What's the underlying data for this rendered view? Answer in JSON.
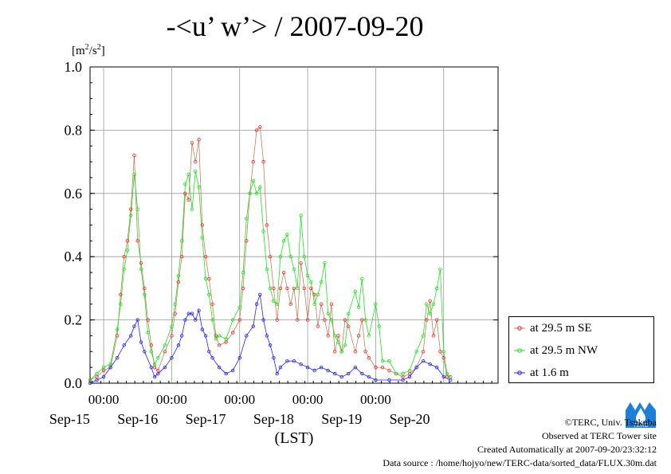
{
  "title": "-<u’ w’> / 2007-09-20",
  "colors": {
    "se": "#ff2020",
    "nw": "#20e020",
    "low": "#2020ff",
    "se_line": "#c08060"
  },
  "chart_data": {
    "type": "line",
    "title": "-<u’ w’> / 2007-09-20",
    "ylabel": "[m²/s²]",
    "xlabel": "(LST)",
    "ylim": [
      0,
      1.0
    ],
    "yticks": [
      "0.0",
      "0.2",
      "0.4",
      "0.6",
      "0.8",
      "1.0"
    ],
    "x_unit": "days since 2007-09-14 00:00 LST",
    "xlim": [
      0.8,
      6.8
    ],
    "x_minor_labels": [
      "00:00",
      "00:00",
      "00:00",
      "00:00",
      "00:00"
    ],
    "x_major_labels": [
      "Sep-15",
      "Sep-16",
      "Sep-17",
      "Sep-18",
      "Sep-19",
      "Sep-20"
    ],
    "grid": true,
    "legend_position": "right",
    "series": [
      {
        "name": "at 29.5 m SE",
        "color": "#ff2020",
        "points": [
          [
            0.8,
            0.01
          ],
          [
            0.9,
            0.02
          ],
          [
            1.0,
            0.04
          ],
          [
            1.1,
            0.05
          ],
          [
            1.2,
            0.15
          ],
          [
            1.25,
            0.28
          ],
          [
            1.3,
            0.4
          ],
          [
            1.35,
            0.45
          ],
          [
            1.4,
            0.55
          ],
          [
            1.45,
            0.72
          ],
          [
            1.5,
            0.45
          ],
          [
            1.55,
            0.38
          ],
          [
            1.6,
            0.3
          ],
          [
            1.65,
            0.2
          ],
          [
            1.7,
            0.12
          ],
          [
            1.75,
            0.05
          ],
          [
            1.8,
            0.04
          ],
          [
            1.9,
            0.1
          ],
          [
            2.0,
            0.15
          ],
          [
            2.05,
            0.22
          ],
          [
            2.1,
            0.32
          ],
          [
            2.15,
            0.4
          ],
          [
            2.2,
            0.6
          ],
          [
            2.25,
            0.58
          ],
          [
            2.3,
            0.76
          ],
          [
            2.35,
            0.7
          ],
          [
            2.4,
            0.77
          ],
          [
            2.45,
            0.5
          ],
          [
            2.5,
            0.4
          ],
          [
            2.55,
            0.33
          ],
          [
            2.6,
            0.25
          ],
          [
            2.65,
            0.15
          ],
          [
            2.7,
            0.12
          ],
          [
            2.8,
            0.13
          ],
          [
            2.9,
            0.16
          ],
          [
            3.0,
            0.2
          ],
          [
            3.05,
            0.3
          ],
          [
            3.1,
            0.45
          ],
          [
            3.15,
            0.6
          ],
          [
            3.2,
            0.7
          ],
          [
            3.25,
            0.8
          ],
          [
            3.3,
            0.81
          ],
          [
            3.35,
            0.7
          ],
          [
            3.4,
            0.5
          ],
          [
            3.45,
            0.4
          ],
          [
            3.5,
            0.3
          ],
          [
            3.55,
            0.2
          ],
          [
            3.6,
            0.3
          ],
          [
            3.65,
            0.35
          ],
          [
            3.7,
            0.3
          ],
          [
            3.75,
            0.25
          ],
          [
            3.8,
            0.3
          ],
          [
            3.85,
            0.2
          ],
          [
            3.9,
            0.38
          ],
          [
            3.95,
            0.3
          ],
          [
            4.0,
            0.2
          ],
          [
            4.05,
            0.3
          ],
          [
            4.1,
            0.28
          ],
          [
            4.15,
            0.18
          ],
          [
            4.2,
            0.25
          ],
          [
            4.25,
            0.2
          ],
          [
            4.3,
            0.15
          ],
          [
            4.35,
            0.25
          ],
          [
            4.4,
            0.1
          ],
          [
            4.45,
            0.15
          ],
          [
            4.5,
            0.1
          ],
          [
            4.55,
            0.2
          ],
          [
            4.6,
            0.18
          ],
          [
            4.7,
            0.1
          ],
          [
            4.75,
            0.15
          ],
          [
            4.8,
            0.2
          ],
          [
            4.85,
            0.1
          ],
          [
            4.9,
            0.08
          ],
          [
            5.0,
            0.05
          ],
          [
            5.1,
            0.05
          ],
          [
            5.2,
            0.04
          ],
          [
            5.3,
            0.03
          ],
          [
            5.4,
            0.02
          ],
          [
            5.5,
            0.03
          ],
          [
            5.6,
            0.05
          ],
          [
            5.7,
            0.1
          ],
          [
            5.75,
            0.2
          ],
          [
            5.8,
            0.26
          ],
          [
            5.85,
            0.15
          ],
          [
            5.9,
            0.2
          ],
          [
            5.95,
            0.1
          ],
          [
            6.0,
            0.08
          ],
          [
            6.05,
            0.02
          ],
          [
            6.1,
            0.02
          ]
        ]
      },
      {
        "name": "at 29.5 m NW",
        "color": "#20e020",
        "points": [
          [
            0.8,
            0.01
          ],
          [
            0.9,
            0.03
          ],
          [
            1.0,
            0.05
          ],
          [
            1.1,
            0.06
          ],
          [
            1.2,
            0.17
          ],
          [
            1.25,
            0.25
          ],
          [
            1.3,
            0.36
          ],
          [
            1.35,
            0.42
          ],
          [
            1.4,
            0.53
          ],
          [
            1.45,
            0.66
          ],
          [
            1.5,
            0.55
          ],
          [
            1.55,
            0.36
          ],
          [
            1.6,
            0.28
          ],
          [
            1.65,
            0.16
          ],
          [
            1.7,
            0.1
          ],
          [
            1.75,
            0.06
          ],
          [
            1.8,
            0.08
          ],
          [
            1.9,
            0.12
          ],
          [
            2.0,
            0.18
          ],
          [
            2.05,
            0.25
          ],
          [
            2.1,
            0.34
          ],
          [
            2.15,
            0.45
          ],
          [
            2.2,
            0.63
          ],
          [
            2.25,
            0.66
          ],
          [
            2.3,
            0.55
          ],
          [
            2.35,
            0.67
          ],
          [
            2.4,
            0.62
          ],
          [
            2.45,
            0.46
          ],
          [
            2.5,
            0.33
          ],
          [
            2.55,
            0.28
          ],
          [
            2.6,
            0.2
          ],
          [
            2.65,
            0.14
          ],
          [
            2.7,
            0.15
          ],
          [
            2.8,
            0.14
          ],
          [
            2.9,
            0.2
          ],
          [
            3.0,
            0.24
          ],
          [
            3.05,
            0.35
          ],
          [
            3.1,
            0.52
          ],
          [
            3.15,
            0.6
          ],
          [
            3.2,
            0.64
          ],
          [
            3.25,
            0.6
          ],
          [
            3.3,
            0.62
          ],
          [
            3.35,
            0.48
          ],
          [
            3.4,
            0.36
          ],
          [
            3.45,
            0.3
          ],
          [
            3.5,
            0.26
          ],
          [
            3.55,
            0.25
          ],
          [
            3.6,
            0.4
          ],
          [
            3.65,
            0.45
          ],
          [
            3.7,
            0.47
          ],
          [
            3.75,
            0.4
          ],
          [
            3.8,
            0.36
          ],
          [
            3.85,
            0.3
          ],
          [
            3.9,
            0.53
          ],
          [
            3.95,
            0.4
          ],
          [
            4.0,
            0.34
          ],
          [
            4.05,
            0.32
          ],
          [
            4.1,
            0.25
          ],
          [
            4.15,
            0.28
          ],
          [
            4.2,
            0.32
          ],
          [
            4.25,
            0.38
          ],
          [
            4.3,
            0.22
          ],
          [
            4.35,
            0.2
          ],
          [
            4.4,
            0.15
          ],
          [
            4.45,
            0.13
          ],
          [
            4.5,
            0.1
          ],
          [
            4.55,
            0.12
          ],
          [
            4.6,
            0.22
          ],
          [
            4.7,
            0.29
          ],
          [
            4.75,
            0.24
          ],
          [
            4.8,
            0.33
          ],
          [
            4.85,
            0.2
          ],
          [
            4.9,
            0.15
          ],
          [
            5.0,
            0.25
          ],
          [
            5.05,
            0.18
          ],
          [
            5.1,
            0.07
          ],
          [
            5.2,
            0.07
          ],
          [
            5.3,
            0.03
          ],
          [
            5.4,
            0.03
          ],
          [
            5.5,
            0.04
          ],
          [
            5.6,
            0.1
          ],
          [
            5.7,
            0.15
          ],
          [
            5.75,
            0.25
          ],
          [
            5.8,
            0.22
          ],
          [
            5.85,
            0.25
          ],
          [
            5.9,
            0.3
          ],
          [
            5.95,
            0.36
          ],
          [
            6.0,
            0.1
          ],
          [
            6.05,
            0.03
          ],
          [
            6.1,
            0.02
          ]
        ]
      },
      {
        "name": "at 1.6 m",
        "color": "#2020ff",
        "points": [
          [
            0.8,
            0.0
          ],
          [
            0.9,
            0.01
          ],
          [
            1.0,
            0.02
          ],
          [
            1.1,
            0.05
          ],
          [
            1.2,
            0.08
          ],
          [
            1.3,
            0.12
          ],
          [
            1.4,
            0.15
          ],
          [
            1.45,
            0.18
          ],
          [
            1.5,
            0.2
          ],
          [
            1.55,
            0.13
          ],
          [
            1.6,
            0.1
          ],
          [
            1.7,
            0.05
          ],
          [
            1.75,
            0.02
          ],
          [
            1.8,
            0.03
          ],
          [
            1.9,
            0.05
          ],
          [
            2.0,
            0.08
          ],
          [
            2.1,
            0.12
          ],
          [
            2.15,
            0.15
          ],
          [
            2.2,
            0.2
          ],
          [
            2.25,
            0.22
          ],
          [
            2.3,
            0.22
          ],
          [
            2.35,
            0.2
          ],
          [
            2.4,
            0.23
          ],
          [
            2.45,
            0.17
          ],
          [
            2.5,
            0.15
          ],
          [
            2.55,
            0.1
          ],
          [
            2.6,
            0.08
          ],
          [
            2.7,
            0.05
          ],
          [
            2.8,
            0.03
          ],
          [
            2.9,
            0.04
          ],
          [
            3.0,
            0.08
          ],
          [
            3.1,
            0.15
          ],
          [
            3.2,
            0.18
          ],
          [
            3.25,
            0.25
          ],
          [
            3.3,
            0.28
          ],
          [
            3.35,
            0.2
          ],
          [
            3.4,
            0.15
          ],
          [
            3.45,
            0.12
          ],
          [
            3.5,
            0.08
          ],
          [
            3.55,
            0.03
          ],
          [
            3.6,
            0.05
          ],
          [
            3.7,
            0.07
          ],
          [
            3.8,
            0.07
          ],
          [
            3.9,
            0.06
          ],
          [
            4.0,
            0.05
          ],
          [
            4.1,
            0.04
          ],
          [
            4.2,
            0.05
          ],
          [
            4.3,
            0.04
          ],
          [
            4.4,
            0.03
          ],
          [
            4.5,
            0.02
          ],
          [
            4.6,
            0.03
          ],
          [
            4.7,
            0.05
          ],
          [
            4.8,
            0.03
          ],
          [
            4.9,
            0.02
          ],
          [
            5.0,
            0.01
          ],
          [
            5.2,
            0.01
          ],
          [
            5.4,
            0.01
          ],
          [
            5.5,
            0.02
          ],
          [
            5.6,
            0.05
          ],
          [
            5.7,
            0.07
          ],
          [
            5.8,
            0.06
          ],
          [
            5.9,
            0.05
          ],
          [
            6.0,
            0.02
          ],
          [
            6.1,
            0.01
          ]
        ]
      }
    ]
  },
  "footer": {
    "credit": "©TERC, Univ. Tsukuba",
    "site": "Observed at TERC Tower site",
    "created": "Created Automatically at 2007-09-20/23:32:12",
    "source": "Data source : /home/hojyo/new/TERC-data/sorted_data/FLUX.30m.dat"
  },
  "logo": {
    "icon": "terc-logo-icon",
    "text": "TERC"
  }
}
